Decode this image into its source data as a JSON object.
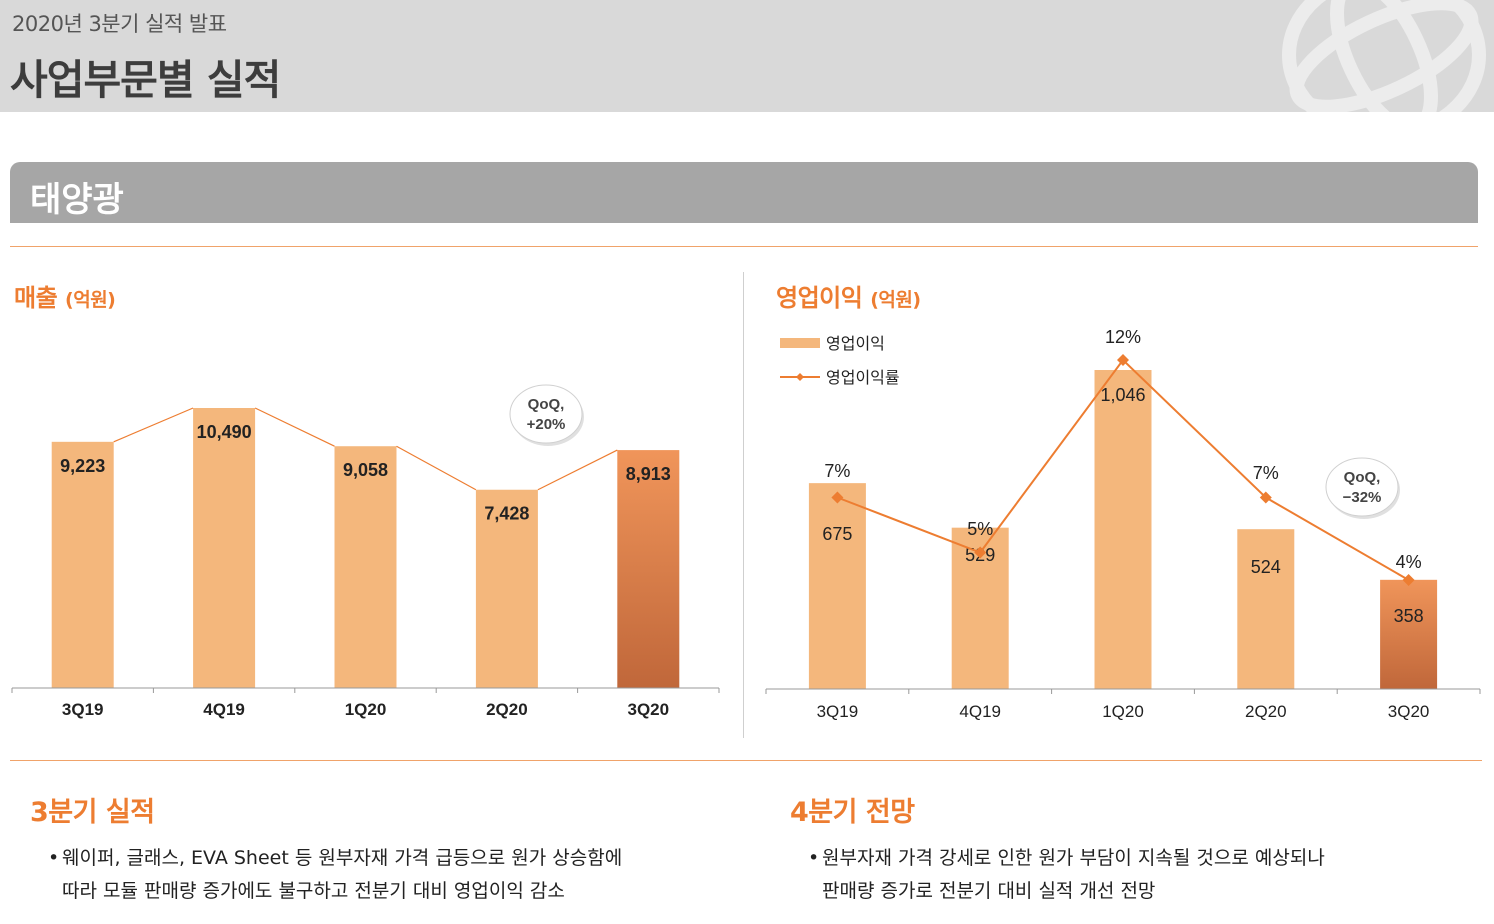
{
  "header": {
    "subtitle": "2020년 3분기 실적 발표",
    "title": "사업부문별 실적"
  },
  "section": {
    "title": "태양광"
  },
  "colors": {
    "accent": "#ed7d31",
    "bar": "#f4b77c",
    "bar_highlight_top": "#f0955a",
    "bar_highlight_bottom": "#c0673a",
    "line": "#ed7d31"
  },
  "revenue": {
    "title": "매출",
    "unit": "(억원)",
    "callout": {
      "line1": "QoQ,",
      "line2": "+20%"
    }
  },
  "op_profit": {
    "title": "영업이익",
    "unit": "(억원)",
    "legend": {
      "bar_label": "영업이익",
      "line_label": "영업이익률"
    },
    "callout": {
      "line1": "QoQ,",
      "line2": "−32%"
    }
  },
  "chart_data": [
    {
      "type": "bar",
      "title": "매출 (억원)",
      "categories": [
        "3Q19",
        "4Q19",
        "1Q20",
        "2Q20",
        "3Q20"
      ],
      "values": [
        9223,
        10490,
        9058,
        7428,
        8913
      ],
      "value_labels": [
        "9,223",
        "10,490",
        "9,058",
        "7,428",
        "8,913"
      ],
      "highlight_index": 4,
      "trend_line": true,
      "ylim": [
        0,
        12000
      ]
    },
    {
      "type": "bar",
      "title": "영업이익 (억원)",
      "categories": [
        "3Q19",
        "4Q19",
        "1Q20",
        "2Q20",
        "3Q20"
      ],
      "series": [
        {
          "name": "영업이익",
          "type": "bar",
          "values": [
            675,
            529,
            1046,
            524,
            358
          ],
          "value_labels": [
            "675",
            "529",
            "1,046",
            "524",
            "358"
          ]
        },
        {
          "name": "영업이익률",
          "type": "line",
          "values": [
            7,
            5,
            12,
            7,
            4
          ],
          "value_labels": [
            "7%",
            "5%",
            "12%",
            "7%",
            "4%"
          ]
        }
      ],
      "highlight_index": 4,
      "ylim": [
        0,
        1200
      ],
      "y2lim": [
        0,
        14
      ]
    }
  ],
  "outlook": {
    "q3": {
      "title": "3분기 실적",
      "lines": [
        "웨이퍼, 글래스, EVA Sheet 등 원부자재 가격 급등으로 원가 상승함에",
        "따라 모듈 판매량 증가에도 불구하고 전분기 대비 영업이익 감소"
      ]
    },
    "q4": {
      "title": "4분기 전망",
      "lines": [
        "원부자재 가격 강세로 인한 원가 부담이 지속될 것으로 예상되나",
        "판매량 증가로 전분기 대비 실적 개선 전망"
      ]
    }
  }
}
